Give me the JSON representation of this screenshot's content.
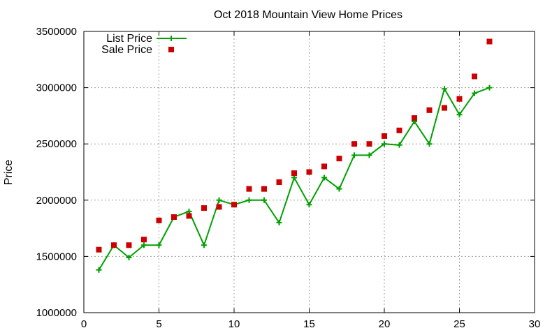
{
  "chart_data": {
    "type": "line",
    "title": "Oct 2018 Mountain View Home Prices",
    "xlabel": "",
    "ylabel": "Price",
    "xlim": [
      0,
      30
    ],
    "ylim": [
      1000000,
      3500000
    ],
    "xticks": [
      0,
      5,
      10,
      15,
      20,
      25,
      30
    ],
    "yticks": [
      1000000,
      1500000,
      2000000,
      2500000,
      3000000,
      3500000
    ],
    "grid": true,
    "legend_position": "top-left",
    "series": [
      {
        "name": "List Price",
        "style": "line-with-plus-markers",
        "color": "#00a000",
        "x": [
          1,
          2,
          3,
          4,
          5,
          6,
          7,
          8,
          9,
          10,
          11,
          12,
          13,
          14,
          15,
          16,
          17,
          18,
          19,
          20,
          21,
          22,
          23,
          24,
          25,
          26,
          27
        ],
        "values": [
          1380000,
          1600000,
          1490000,
          1600000,
          1600000,
          1850000,
          1900000,
          1600000,
          2000000,
          1960000,
          2000000,
          2000000,
          1800000,
          2200000,
          1960000,
          2200000,
          2100000,
          2400000,
          2400000,
          2500000,
          2490000,
          2700000,
          2500000,
          2990000,
          2760000,
          2950000,
          3000000
        ]
      },
      {
        "name": "Sale Price",
        "style": "square-markers",
        "color": "#cc0000",
        "x": [
          1,
          2,
          3,
          4,
          5,
          6,
          7,
          8,
          9,
          10,
          11,
          12,
          13,
          14,
          15,
          16,
          17,
          18,
          19,
          20,
          21,
          22,
          23,
          24,
          25,
          26,
          27
        ],
        "values": [
          1560000,
          1600000,
          1600000,
          1650000,
          1820000,
          1850000,
          1860000,
          1930000,
          1940000,
          1960000,
          2100000,
          2100000,
          2160000,
          2240000,
          2250000,
          2300000,
          2370000,
          2500000,
          2500000,
          2570000,
          2620000,
          2730000,
          2800000,
          2820000,
          2900000,
          3100000,
          3410000
        ]
      }
    ]
  }
}
